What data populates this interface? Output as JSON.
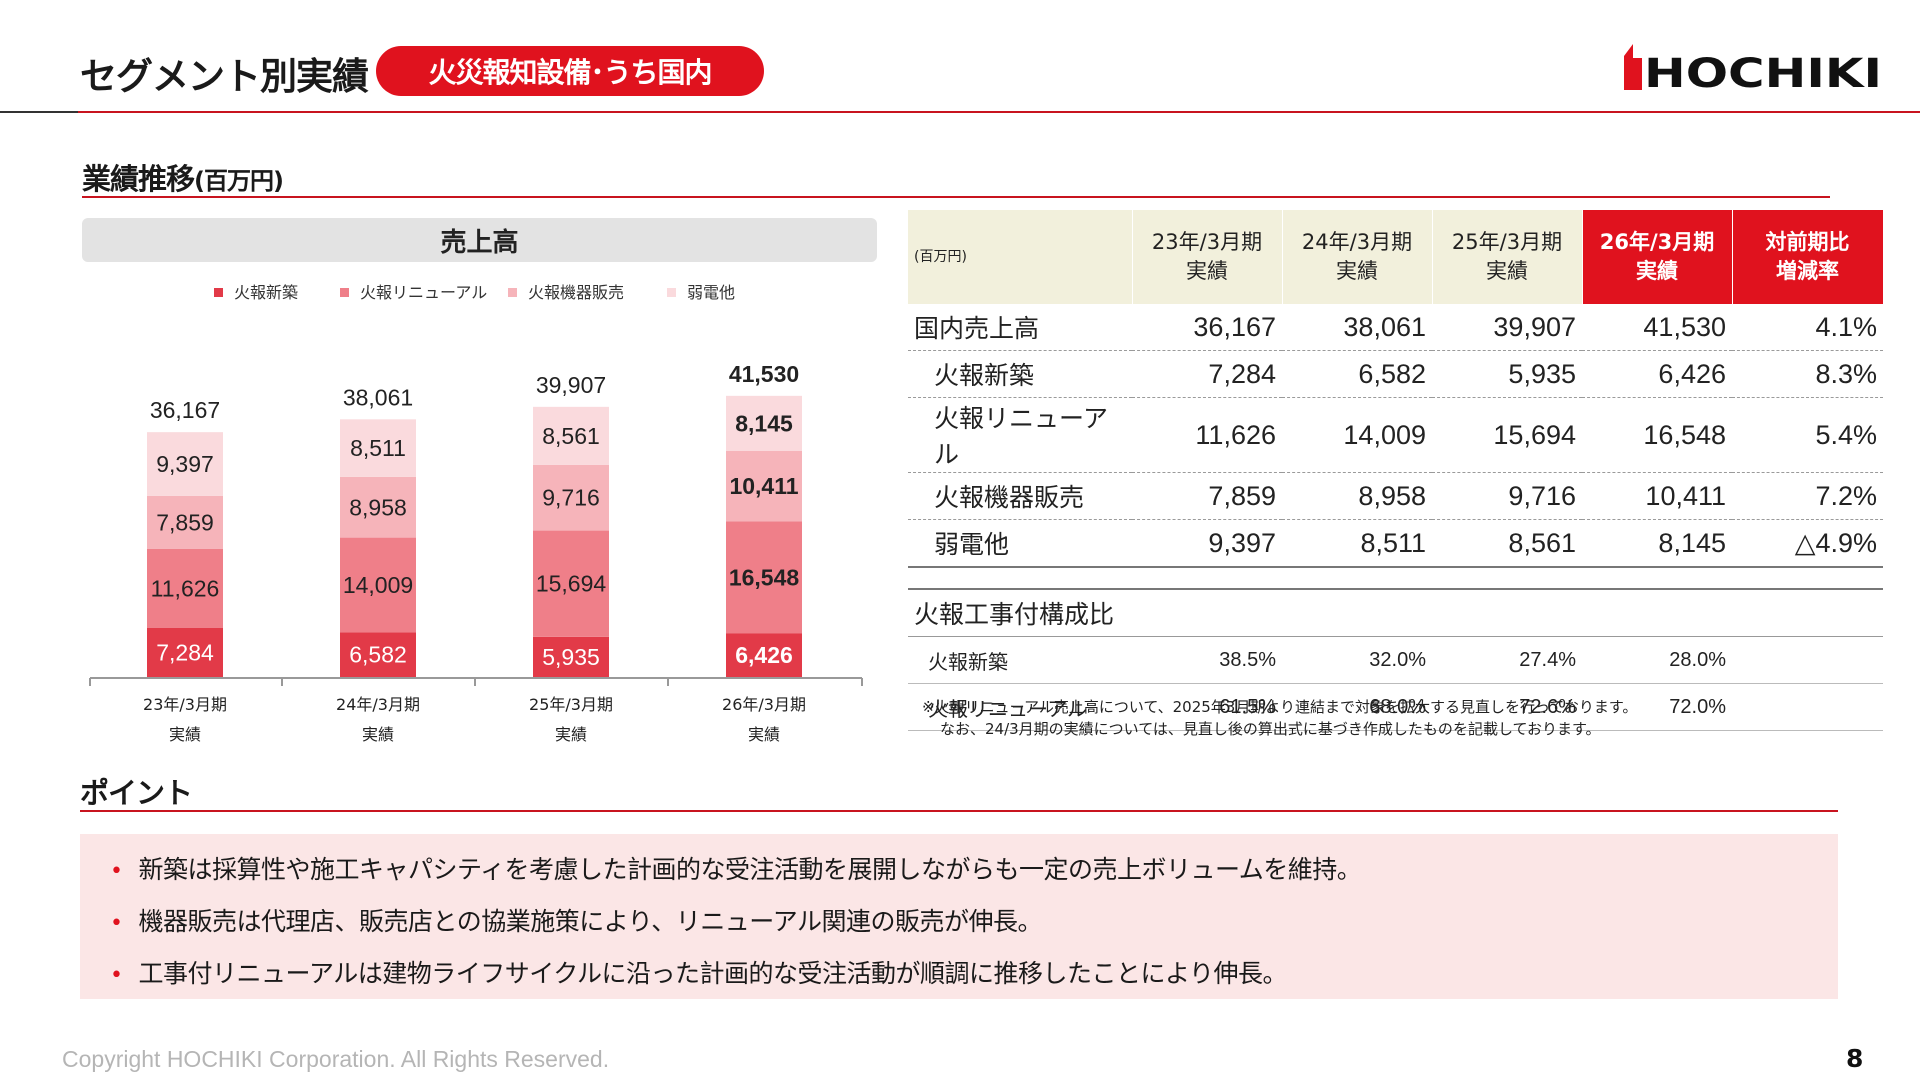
{
  "header": {
    "title": "セグメント別実績",
    "badge": "火災報知設備･うち国内",
    "logo_text": "HOCHIKI"
  },
  "performance": {
    "heading": "業績推移",
    "heading_unit": "(百万円)"
  },
  "chart_data": {
    "type": "bar",
    "stacked": true,
    "title": "売上高",
    "categories": [
      "23年/3月期",
      "24年/3月期",
      "25年/3月期",
      "26年/3月期"
    ],
    "category_sublabel": "実績",
    "series": [
      {
        "name": "火報新築",
        "values": [
          7284,
          6582,
          5935,
          6426
        ]
      },
      {
        "name": "火報リニューアル",
        "values": [
          11626,
          14009,
          15694,
          16548
        ]
      },
      {
        "name": "火報機器販売",
        "values": [
          7859,
          8958,
          9716,
          10411
        ]
      },
      {
        "name": "弱電他",
        "values": [
          9397,
          8511,
          8561,
          8145
        ]
      }
    ],
    "totals": [
      36167,
      38061,
      39907,
      41530
    ],
    "value_labels": [
      [
        "7,284",
        "6,582",
        "5,935",
        "6,426"
      ],
      [
        "11,626",
        "14,009",
        "15,694",
        "16,548"
      ],
      [
        "7,859",
        "8,958",
        "9,716",
        "10,411"
      ],
      [
        "9,397",
        "8,511",
        "8,561",
        "8,145"
      ]
    ],
    "total_labels": [
      "36,167",
      "38,061",
      "39,907",
      "41,530"
    ],
    "highlight_index": 3,
    "legend_position": "top",
    "colors": [
      "#e23a48",
      "#ef7f89",
      "#f6b4ba",
      "#fadadd"
    ],
    "grid": false
  },
  "table": {
    "unit": "(百万円)",
    "headers": [
      {
        "line1": "23年/3月期",
        "line2": "実績"
      },
      {
        "line1": "24年/3月期",
        "line2": "実績"
      },
      {
        "line1": "25年/3月期",
        "line2": "実績"
      },
      {
        "line1": "26年/3月期",
        "line2": "実績"
      },
      {
        "line1": "対前期比",
        "line2": "増減率"
      }
    ],
    "rows": [
      {
        "name": "国内売上高",
        "values": [
          "36,167",
          "38,061",
          "39,907",
          "41,530",
          "4.1%"
        ]
      },
      {
        "name": "火報新築",
        "values": [
          "7,284",
          "6,582",
          "5,935",
          "6,426",
          "8.3%"
        ]
      },
      {
        "name": "火報リニューアル",
        "values": [
          "11,626",
          "14,009",
          "15,694",
          "16,548",
          "5.4%"
        ]
      },
      {
        "name": "火報機器販売",
        "values": [
          "7,859",
          "8,958",
          "9,716",
          "10,411",
          "7.2%"
        ]
      },
      {
        "name": "弱電他",
        "values": [
          "9,397",
          "8,511",
          "8,561",
          "8,145",
          "△4.9%"
        ]
      }
    ],
    "ratio_section": "火報工事付構成比",
    "ratio_rows": [
      {
        "name": "火報新築",
        "values": [
          "38.5%",
          "32.0%",
          "27.4%",
          "28.0%"
        ]
      },
      {
        "name": "火報リニューアル",
        "values": [
          "61.5%",
          "68.0%",
          "72.6%",
          "72.0%"
        ]
      }
    ],
    "note1": "※火報リニューアル売上高について、2025年3月期より連結まで対象を拡大する見直しを行っております。",
    "note2": "なお、24/3月期の実績については、見直し後の算出式に基づき作成したものを記載しております。"
  },
  "points": {
    "heading": "ポイント",
    "items": [
      "新築は採算性や施工キャパシティを考慮した計画的な受注活動を展開しながらも一定の売上ボリュームを維持。",
      "機器販売は代理店、販売店との協業施策により、リニューアル関連の販売が伸長。",
      "工事付リニューアルは建物ライフサイクルに沿った計画的な受注活動が順調に推移したことにより伸長。"
    ]
  },
  "footer": {
    "copyright": "Copyright HOCHIKI Corporation. All Rights Reserved.",
    "page": "8"
  },
  "colors": {
    "accent": "#e0121e",
    "header_bg": "#f2f0dc",
    "points_bg": "#fbe6e6"
  }
}
